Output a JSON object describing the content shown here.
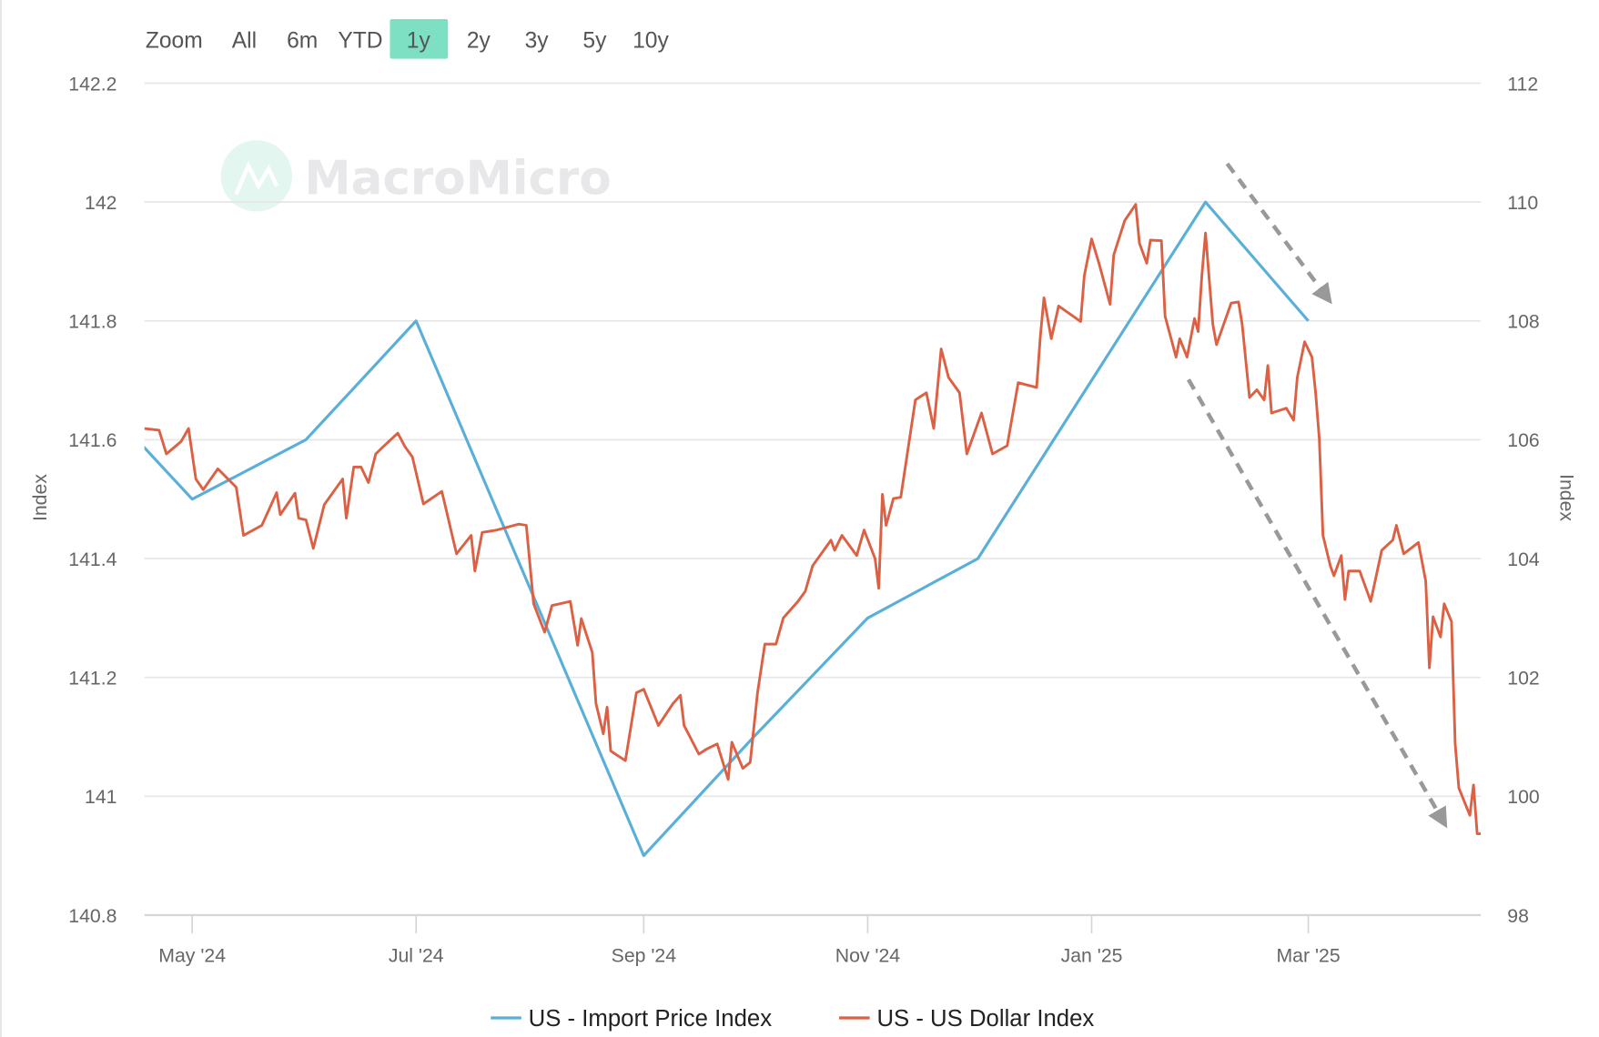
{
  "range_selector": {
    "label": "Zoom",
    "buttons": [
      "All",
      "6m",
      "YTD",
      "1y",
      "2y",
      "3y",
      "5y",
      "10y"
    ],
    "selected": "1y",
    "selected_color": "#7de0c2"
  },
  "watermark": "MacroMicro",
  "chart_data": {
    "type": "line",
    "title": "",
    "x_type": "datetime",
    "xlim": [
      "2024-04-18",
      "2025-04-17"
    ],
    "x_tick_labels": [
      "May '24",
      "Jul '24",
      "Sep '24",
      "Nov '24",
      "Jan '25",
      "Mar '25"
    ],
    "x_tick_dates": [
      "2024-05-01",
      "2024-07-01",
      "2024-09-01",
      "2024-11-01",
      "2025-01-01",
      "2025-03-01"
    ],
    "y_left": {
      "label": "Index",
      "range": [
        140.8,
        142.2
      ],
      "ticks": [
        "140.8",
        "141",
        "141.2",
        "141.4",
        "141.6",
        "141.8",
        "142",
        "142.2"
      ]
    },
    "y_right": {
      "label": "Index",
      "range": [
        98,
        112
      ],
      "ticks": [
        "98",
        "100",
        "102",
        "104",
        "106",
        "108",
        "110",
        "112"
      ]
    },
    "grid": true,
    "legend_position": "bottom",
    "series": [
      {
        "name": "US - Import Price Index",
        "axis": "left",
        "color": "#5aafd9",
        "points": [
          [
            "2024-04-01",
            141.7
          ],
          [
            "2024-05-01",
            141.5
          ],
          [
            "2024-06-01",
            141.6
          ],
          [
            "2024-07-01",
            141.8
          ],
          [
            "2024-08-01",
            141.35
          ],
          [
            "2024-09-01",
            140.9
          ],
          [
            "2024-10-01",
            141.1
          ],
          [
            "2024-11-01",
            141.3
          ],
          [
            "2024-12-01",
            141.4
          ],
          [
            "2025-01-01",
            141.7
          ],
          [
            "2025-02-01",
            142.0
          ],
          [
            "2025-03-01",
            141.8
          ]
        ]
      },
      {
        "name": "US - US Dollar Index",
        "axis": "right",
        "color": "#dc6044",
        "points": [
          [
            "2024-04-18",
            106.19
          ],
          [
            "2024-04-22",
            106.16
          ],
          [
            "2024-04-24",
            105.76
          ],
          [
            "2024-04-28",
            105.97
          ],
          [
            "2024-04-30",
            106.19
          ],
          [
            "2024-05-02",
            105.34
          ],
          [
            "2024-05-04",
            105.16
          ],
          [
            "2024-05-08",
            105.51
          ],
          [
            "2024-05-13",
            105.2
          ],
          [
            "2024-05-15",
            104.39
          ],
          [
            "2024-05-20",
            104.56
          ],
          [
            "2024-05-24",
            105.11
          ],
          [
            "2024-05-25",
            104.74
          ],
          [
            "2024-05-29",
            105.1
          ],
          [
            "2024-05-30",
            104.68
          ],
          [
            "2024-06-01",
            104.65
          ],
          [
            "2024-06-03",
            104.17
          ],
          [
            "2024-06-06",
            104.91
          ],
          [
            "2024-06-11",
            105.34
          ],
          [
            "2024-06-12",
            104.68
          ],
          [
            "2024-06-14",
            105.54
          ],
          [
            "2024-06-16",
            105.54
          ],
          [
            "2024-06-18",
            105.28
          ],
          [
            "2024-06-20",
            105.76
          ],
          [
            "2024-06-22",
            105.88
          ],
          [
            "2024-06-26",
            106.11
          ],
          [
            "2024-06-28",
            105.88
          ],
          [
            "2024-06-30",
            105.71
          ],
          [
            "2024-07-03",
            104.92
          ],
          [
            "2024-07-08",
            105.13
          ],
          [
            "2024-07-12",
            104.08
          ],
          [
            "2024-07-16",
            104.39
          ],
          [
            "2024-07-17",
            103.79
          ],
          [
            "2024-07-19",
            104.44
          ],
          [
            "2024-07-23",
            104.48
          ],
          [
            "2024-07-29",
            104.58
          ],
          [
            "2024-07-31",
            104.56
          ],
          [
            "2024-08-02",
            103.24
          ],
          [
            "2024-08-05",
            102.76
          ],
          [
            "2024-08-07",
            103.21
          ],
          [
            "2024-08-12",
            103.28
          ],
          [
            "2024-08-14",
            102.54
          ],
          [
            "2024-08-15",
            102.99
          ],
          [
            "2024-08-18",
            102.42
          ],
          [
            "2024-08-19",
            101.56
          ],
          [
            "2024-08-21",
            101.05
          ],
          [
            "2024-08-22",
            101.5
          ],
          [
            "2024-08-23",
            100.76
          ],
          [
            "2024-08-27",
            100.6
          ],
          [
            "2024-08-30",
            101.74
          ],
          [
            "2024-09-01",
            101.8
          ],
          [
            "2024-09-05",
            101.19
          ],
          [
            "2024-09-09",
            101.56
          ],
          [
            "2024-09-11",
            101.7
          ],
          [
            "2024-09-12",
            101.19
          ],
          [
            "2024-09-16",
            100.71
          ],
          [
            "2024-09-18",
            100.79
          ],
          [
            "2024-09-21",
            100.88
          ],
          [
            "2024-09-24",
            100.28
          ],
          [
            "2024-09-25",
            100.91
          ],
          [
            "2024-09-28",
            100.47
          ],
          [
            "2024-09-30",
            100.57
          ],
          [
            "2024-10-02",
            101.74
          ],
          [
            "2024-10-04",
            102.56
          ],
          [
            "2024-10-07",
            102.56
          ],
          [
            "2024-10-09",
            103.0
          ],
          [
            "2024-10-13",
            103.28
          ],
          [
            "2024-10-15",
            103.45
          ],
          [
            "2024-10-17",
            103.88
          ],
          [
            "2024-10-22",
            104.31
          ],
          [
            "2024-10-23",
            104.14
          ],
          [
            "2024-10-25",
            104.39
          ],
          [
            "2024-10-29",
            104.05
          ],
          [
            "2024-10-31",
            104.48
          ],
          [
            "2024-11-03",
            104.0
          ],
          [
            "2024-11-04",
            103.5
          ],
          [
            "2024-11-05",
            105.08
          ],
          [
            "2024-11-06",
            104.56
          ],
          [
            "2024-11-08",
            105.01
          ],
          [
            "2024-11-10",
            105.03
          ],
          [
            "2024-11-12",
            105.85
          ],
          [
            "2024-11-14",
            106.67
          ],
          [
            "2024-11-17",
            106.79
          ],
          [
            "2024-11-19",
            106.19
          ],
          [
            "2024-11-21",
            107.53
          ],
          [
            "2024-11-23",
            107.05
          ],
          [
            "2024-11-26",
            106.79
          ],
          [
            "2024-11-28",
            105.76
          ],
          [
            "2024-12-02",
            106.45
          ],
          [
            "2024-12-05",
            105.76
          ],
          [
            "2024-12-09",
            105.9
          ],
          [
            "2024-12-12",
            106.96
          ],
          [
            "2024-12-17",
            106.88
          ],
          [
            "2024-12-18",
            107.73
          ],
          [
            "2024-12-19",
            108.39
          ],
          [
            "2024-12-21",
            107.7
          ],
          [
            "2024-12-23",
            108.25
          ],
          [
            "2024-12-29",
            107.99
          ],
          [
            "2024-12-30",
            108.76
          ],
          [
            "2025-01-01",
            109.38
          ],
          [
            "2025-01-03",
            108.97
          ],
          [
            "2025-01-06",
            108.28
          ],
          [
            "2025-01-07",
            109.11
          ],
          [
            "2025-01-10",
            109.69
          ],
          [
            "2025-01-13",
            109.96
          ],
          [
            "2025-01-14",
            109.31
          ],
          [
            "2025-01-16",
            108.97
          ],
          [
            "2025-01-17",
            109.36
          ],
          [
            "2025-01-20",
            109.35
          ],
          [
            "2025-01-21",
            108.08
          ],
          [
            "2025-01-24",
            107.39
          ],
          [
            "2025-01-25",
            107.7
          ],
          [
            "2025-01-27",
            107.39
          ],
          [
            "2025-01-29",
            108.04
          ],
          [
            "2025-01-30",
            107.82
          ],
          [
            "2025-01-31",
            108.76
          ],
          [
            "2025-02-01",
            109.48
          ],
          [
            "2025-02-03",
            107.94
          ],
          [
            "2025-02-04",
            107.6
          ],
          [
            "2025-02-08",
            108.3
          ],
          [
            "2025-02-10",
            108.32
          ],
          [
            "2025-02-11",
            107.94
          ],
          [
            "2025-02-13",
            106.71
          ],
          [
            "2025-02-15",
            106.84
          ],
          [
            "2025-02-17",
            106.67
          ],
          [
            "2025-02-18",
            107.25
          ],
          [
            "2025-02-19",
            106.45
          ],
          [
            "2025-02-23",
            106.53
          ],
          [
            "2025-02-25",
            106.33
          ],
          [
            "2025-02-26",
            107.05
          ],
          [
            "2025-02-28",
            107.65
          ],
          [
            "2025-03-02",
            107.39
          ],
          [
            "2025-03-03",
            106.79
          ],
          [
            "2025-03-04",
            106.02
          ],
          [
            "2025-03-05",
            104.39
          ],
          [
            "2025-03-07",
            103.88
          ],
          [
            "2025-03-08",
            103.71
          ],
          [
            "2025-03-10",
            104.05
          ],
          [
            "2025-03-11",
            103.31
          ],
          [
            "2025-03-12",
            103.79
          ],
          [
            "2025-03-15",
            103.79
          ],
          [
            "2025-03-18",
            103.28
          ],
          [
            "2025-03-21",
            104.14
          ],
          [
            "2025-03-24",
            104.31
          ],
          [
            "2025-03-25",
            104.56
          ],
          [
            "2025-03-27",
            104.08
          ],
          [
            "2025-03-31",
            104.27
          ],
          [
            "2025-04-02",
            103.62
          ],
          [
            "2025-04-03",
            102.16
          ],
          [
            "2025-04-04",
            103.02
          ],
          [
            "2025-04-06",
            102.68
          ],
          [
            "2025-04-07",
            103.24
          ],
          [
            "2025-04-09",
            102.94
          ],
          [
            "2025-04-10",
            100.88
          ],
          [
            "2025-04-11",
            100.14
          ],
          [
            "2025-04-14",
            99.68
          ],
          [
            "2025-04-15",
            100.19
          ],
          [
            "2025-04-16",
            99.37
          ],
          [
            "2025-04-17",
            99.37
          ]
        ]
      }
    ],
    "annotations": [
      {
        "type": "dashed-arrow",
        "color": "#999999",
        "meaning": "downtrend"
      },
      {
        "type": "dashed-arrow",
        "color": "#999999",
        "meaning": "downtrend"
      }
    ]
  }
}
